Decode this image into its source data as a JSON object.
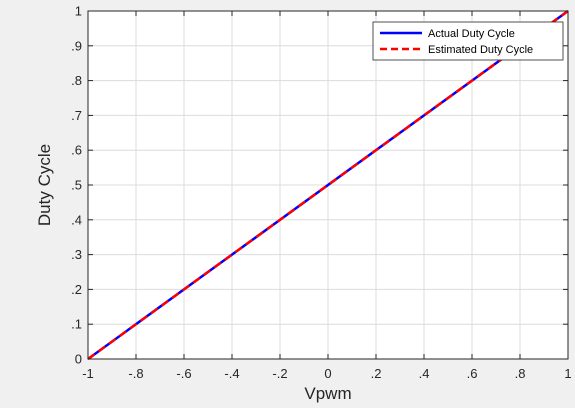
{
  "chart_data": {
    "type": "line",
    "xlabel": "Vpwm",
    "ylabel": "Duty Cycle",
    "xlim": [
      -1,
      1
    ],
    "ylim": [
      0,
      1
    ],
    "xticks": [
      -1,
      -0.8,
      -0.6,
      -0.4,
      -0.2,
      0,
      0.2,
      0.4,
      0.6,
      0.8,
      1
    ],
    "yticks": [
      0,
      0.1,
      0.2,
      0.3,
      0.4,
      0.5,
      0.6,
      0.7,
      0.8,
      0.9,
      1
    ],
    "grid": true,
    "legend_position": "top-right",
    "series": [
      {
        "name": "Actual Duty Cycle",
        "color": "#0000ff",
        "style": "solid",
        "x": [
          -1,
          1
        ],
        "y": [
          0,
          1
        ]
      },
      {
        "name": "Estimated Duty Cycle",
        "color": "#ff0000",
        "style": "dashed",
        "x": [
          -1,
          1
        ],
        "y": [
          0,
          1
        ]
      }
    ]
  }
}
